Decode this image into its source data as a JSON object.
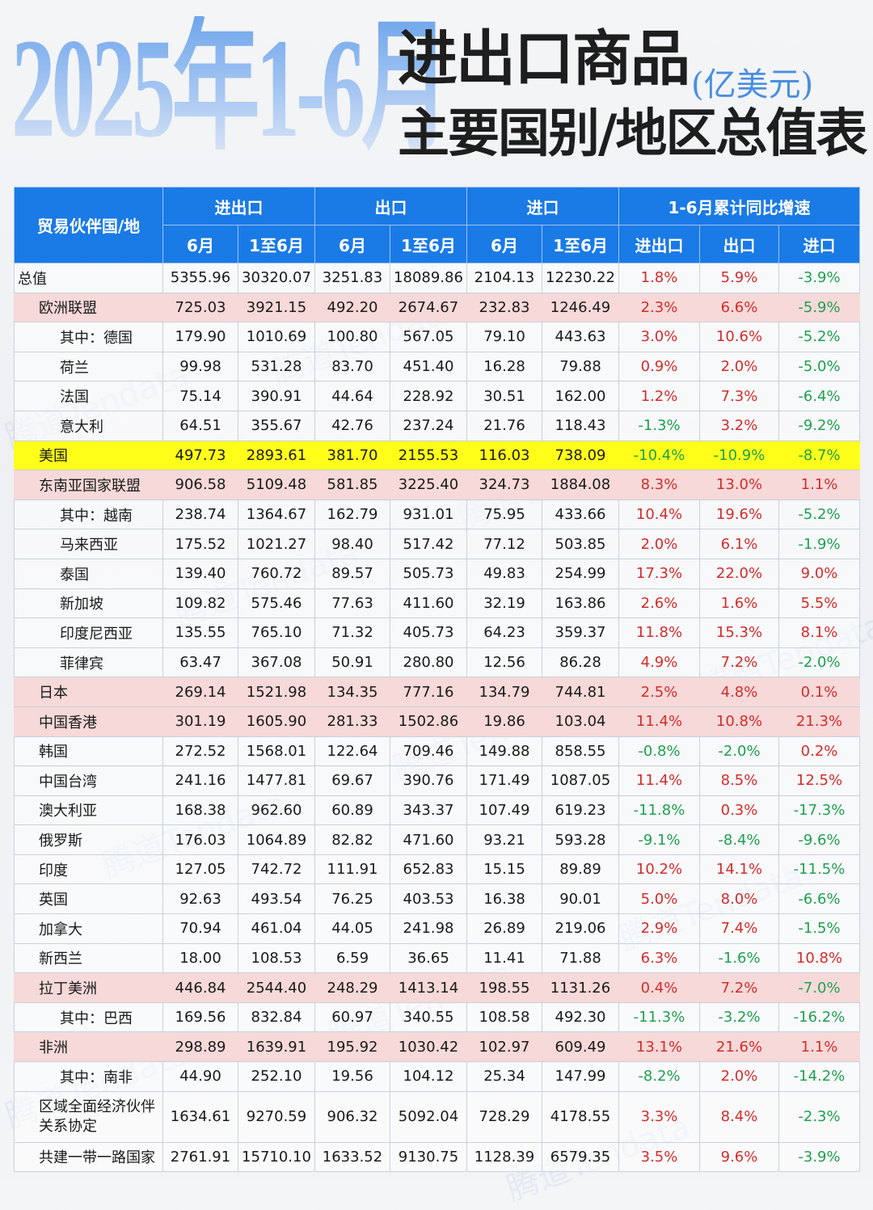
{
  "header": {
    "year_range": "2025年1-6月",
    "title_line1": "进出口商品",
    "unit": "(亿美元)",
    "title_line2": "主要国别/地区总值表"
  },
  "colors": {
    "header_blue": "#1a7ae6",
    "highlight_pink": "#f6d9d8",
    "highlight_yellow": "#ffff1a",
    "positive_red": "#d42c2c",
    "negative_green": "#1fa050"
  },
  "watermark": "腾道Tendata",
  "table": {
    "partner_header": "贸易伙伴国/地",
    "groups": [
      "进出口",
      "出口",
      "进口",
      "1-6月累计同比增速"
    ],
    "subheaders": [
      "6月",
      "1至6月",
      "6月",
      "1至6月",
      "6月",
      "1至6月",
      "进出口",
      "出口",
      "进口"
    ],
    "rows": [
      {
        "name": "总值",
        "level": 0,
        "hl": "",
        "values": [
          "5355.96",
          "30320.07",
          "3251.83",
          "18089.86",
          "2104.13",
          "12230.22",
          "1.8%",
          "5.9%",
          "-3.9%"
        ]
      },
      {
        "name": "欧洲联盟",
        "level": 1,
        "hl": "pink",
        "values": [
          "725.03",
          "3921.15",
          "492.20",
          "2674.67",
          "232.83",
          "1246.49",
          "2.3%",
          "6.6%",
          "-5.9%"
        ]
      },
      {
        "name": "其中：德国",
        "level": 2,
        "hl": "",
        "values": [
          "179.90",
          "1010.69",
          "100.80",
          "567.05",
          "79.10",
          "443.63",
          "3.0%",
          "10.6%",
          "-5.2%"
        ]
      },
      {
        "name": "荷兰",
        "level": 2,
        "hl": "",
        "values": [
          "99.98",
          "531.28",
          "83.70",
          "451.40",
          "16.28",
          "79.88",
          "0.9%",
          "2.0%",
          "-5.0%"
        ]
      },
      {
        "name": "法国",
        "level": 2,
        "hl": "",
        "values": [
          "75.14",
          "390.91",
          "44.64",
          "228.92",
          "30.51",
          "162.00",
          "1.2%",
          "7.3%",
          "-6.4%"
        ]
      },
      {
        "name": "意大利",
        "level": 2,
        "hl": "",
        "values": [
          "64.51",
          "355.67",
          "42.76",
          "237.24",
          "21.76",
          "118.43",
          "-1.3%",
          "3.2%",
          "-9.2%"
        ]
      },
      {
        "name": "美国",
        "level": 1,
        "hl": "yellow",
        "values": [
          "497.73",
          "2893.61",
          "381.70",
          "2155.53",
          "116.03",
          "738.09",
          "-10.4%",
          "-10.9%",
          "-8.7%"
        ]
      },
      {
        "name": "东南亚国家联盟",
        "level": 1,
        "hl": "pink",
        "values": [
          "906.58",
          "5109.48",
          "581.85",
          "3225.40",
          "324.73",
          "1884.08",
          "8.3%",
          "13.0%",
          "1.1%"
        ]
      },
      {
        "name": "其中：越南",
        "level": 2,
        "hl": "",
        "values": [
          "238.74",
          "1364.67",
          "162.79",
          "931.01",
          "75.95",
          "433.66",
          "10.4%",
          "19.6%",
          "-5.2%"
        ]
      },
      {
        "name": "马来西亚",
        "level": 2,
        "hl": "",
        "values": [
          "175.52",
          "1021.27",
          "98.40",
          "517.42",
          "77.12",
          "503.85",
          "2.0%",
          "6.1%",
          "-1.9%"
        ]
      },
      {
        "name": "泰国",
        "level": 2,
        "hl": "",
        "values": [
          "139.40",
          "760.72",
          "89.57",
          "505.73",
          "49.83",
          "254.99",
          "17.3%",
          "22.0%",
          "9.0%"
        ]
      },
      {
        "name": "新加坡",
        "level": 2,
        "hl": "",
        "values": [
          "109.82",
          "575.46",
          "77.63",
          "411.60",
          "32.19",
          "163.86",
          "2.6%",
          "1.6%",
          "5.5%"
        ]
      },
      {
        "name": "印度尼西亚",
        "level": 2,
        "hl": "",
        "values": [
          "135.55",
          "765.10",
          "71.32",
          "405.73",
          "64.23",
          "359.37",
          "11.8%",
          "15.3%",
          "8.1%"
        ]
      },
      {
        "name": "菲律宾",
        "level": 2,
        "hl": "",
        "values": [
          "63.47",
          "367.08",
          "50.91",
          "280.80",
          "12.56",
          "86.28",
          "4.9%",
          "7.2%",
          "-2.0%"
        ]
      },
      {
        "name": "日本",
        "level": 1,
        "hl": "pink",
        "values": [
          "269.14",
          "1521.98",
          "134.35",
          "777.16",
          "134.79",
          "744.81",
          "2.5%",
          "4.8%",
          "0.1%"
        ]
      },
      {
        "name": "中国香港",
        "level": 1,
        "hl": "pink",
        "values": [
          "301.19",
          "1605.90",
          "281.33",
          "1502.86",
          "19.86",
          "103.04",
          "11.4%",
          "10.8%",
          "21.3%"
        ]
      },
      {
        "name": "韩国",
        "level": 1,
        "hl": "",
        "values": [
          "272.52",
          "1568.01",
          "122.64",
          "709.46",
          "149.88",
          "858.55",
          "-0.8%",
          "-2.0%",
          "0.2%"
        ]
      },
      {
        "name": "中国台湾",
        "level": 1,
        "hl": "",
        "values": [
          "241.16",
          "1477.81",
          "69.67",
          "390.76",
          "171.49",
          "1087.05",
          "11.4%",
          "8.5%",
          "12.5%"
        ]
      },
      {
        "name": "澳大利亚",
        "level": 1,
        "hl": "",
        "values": [
          "168.38",
          "962.60",
          "60.89",
          "343.37",
          "107.49",
          "619.23",
          "-11.8%",
          "0.3%",
          "-17.3%"
        ]
      },
      {
        "name": "俄罗斯",
        "level": 1,
        "hl": "",
        "values": [
          "176.03",
          "1064.89",
          "82.82",
          "471.60",
          "93.21",
          "593.28",
          "-9.1%",
          "-8.4%",
          "-9.6%"
        ]
      },
      {
        "name": "印度",
        "level": 1,
        "hl": "",
        "values": [
          "127.05",
          "742.72",
          "111.91",
          "652.83",
          "15.15",
          "89.89",
          "10.2%",
          "14.1%",
          "-11.5%"
        ]
      },
      {
        "name": "英国",
        "level": 1,
        "hl": "",
        "values": [
          "92.63",
          "493.54",
          "76.25",
          "403.53",
          "16.38",
          "90.01",
          "5.0%",
          "8.0%",
          "-6.6%"
        ]
      },
      {
        "name": "加拿大",
        "level": 1,
        "hl": "",
        "values": [
          "70.94",
          "461.04",
          "44.05",
          "241.98",
          "26.89",
          "219.06",
          "2.9%",
          "7.4%",
          "-1.5%"
        ]
      },
      {
        "name": "新西兰",
        "level": 1,
        "hl": "",
        "values": [
          "18.00",
          "108.53",
          "6.59",
          "36.65",
          "11.41",
          "71.88",
          "6.3%",
          "-1.6%",
          "10.8%"
        ]
      },
      {
        "name": "拉丁美洲",
        "level": 1,
        "hl": "pink",
        "values": [
          "446.84",
          "2544.40",
          "248.29",
          "1413.14",
          "198.55",
          "1131.26",
          "0.4%",
          "7.2%",
          "-7.0%"
        ]
      },
      {
        "name": "其中：巴西",
        "level": 2,
        "hl": "",
        "values": [
          "169.56",
          "832.84",
          "60.97",
          "340.55",
          "108.58",
          "492.30",
          "-11.3%",
          "-3.2%",
          "-16.2%"
        ]
      },
      {
        "name": "非洲",
        "level": 1,
        "hl": "pink",
        "values": [
          "298.89",
          "1639.91",
          "195.92",
          "1030.42",
          "102.97",
          "609.49",
          "13.1%",
          "21.6%",
          "1.1%"
        ]
      },
      {
        "name": "其中：南非",
        "level": 2,
        "hl": "",
        "values": [
          "44.90",
          "252.10",
          "19.56",
          "104.12",
          "25.34",
          "147.99",
          "-8.2%",
          "2.0%",
          "-14.2%"
        ]
      },
      {
        "name": "区域全面经济伙伴关系协定",
        "level": 1,
        "hl": "",
        "multi": true,
        "values": [
          "1634.61",
          "9270.59",
          "906.32",
          "5092.04",
          "728.29",
          "4178.55",
          "3.3%",
          "8.4%",
          "-2.3%"
        ]
      },
      {
        "name": "共建一带一路国家",
        "level": 1,
        "hl": "",
        "values": [
          "2761.91",
          "15710.10",
          "1633.52",
          "9130.75",
          "1128.39",
          "6579.35",
          "3.5%",
          "9.6%",
          "-3.9%"
        ]
      }
    ]
  }
}
